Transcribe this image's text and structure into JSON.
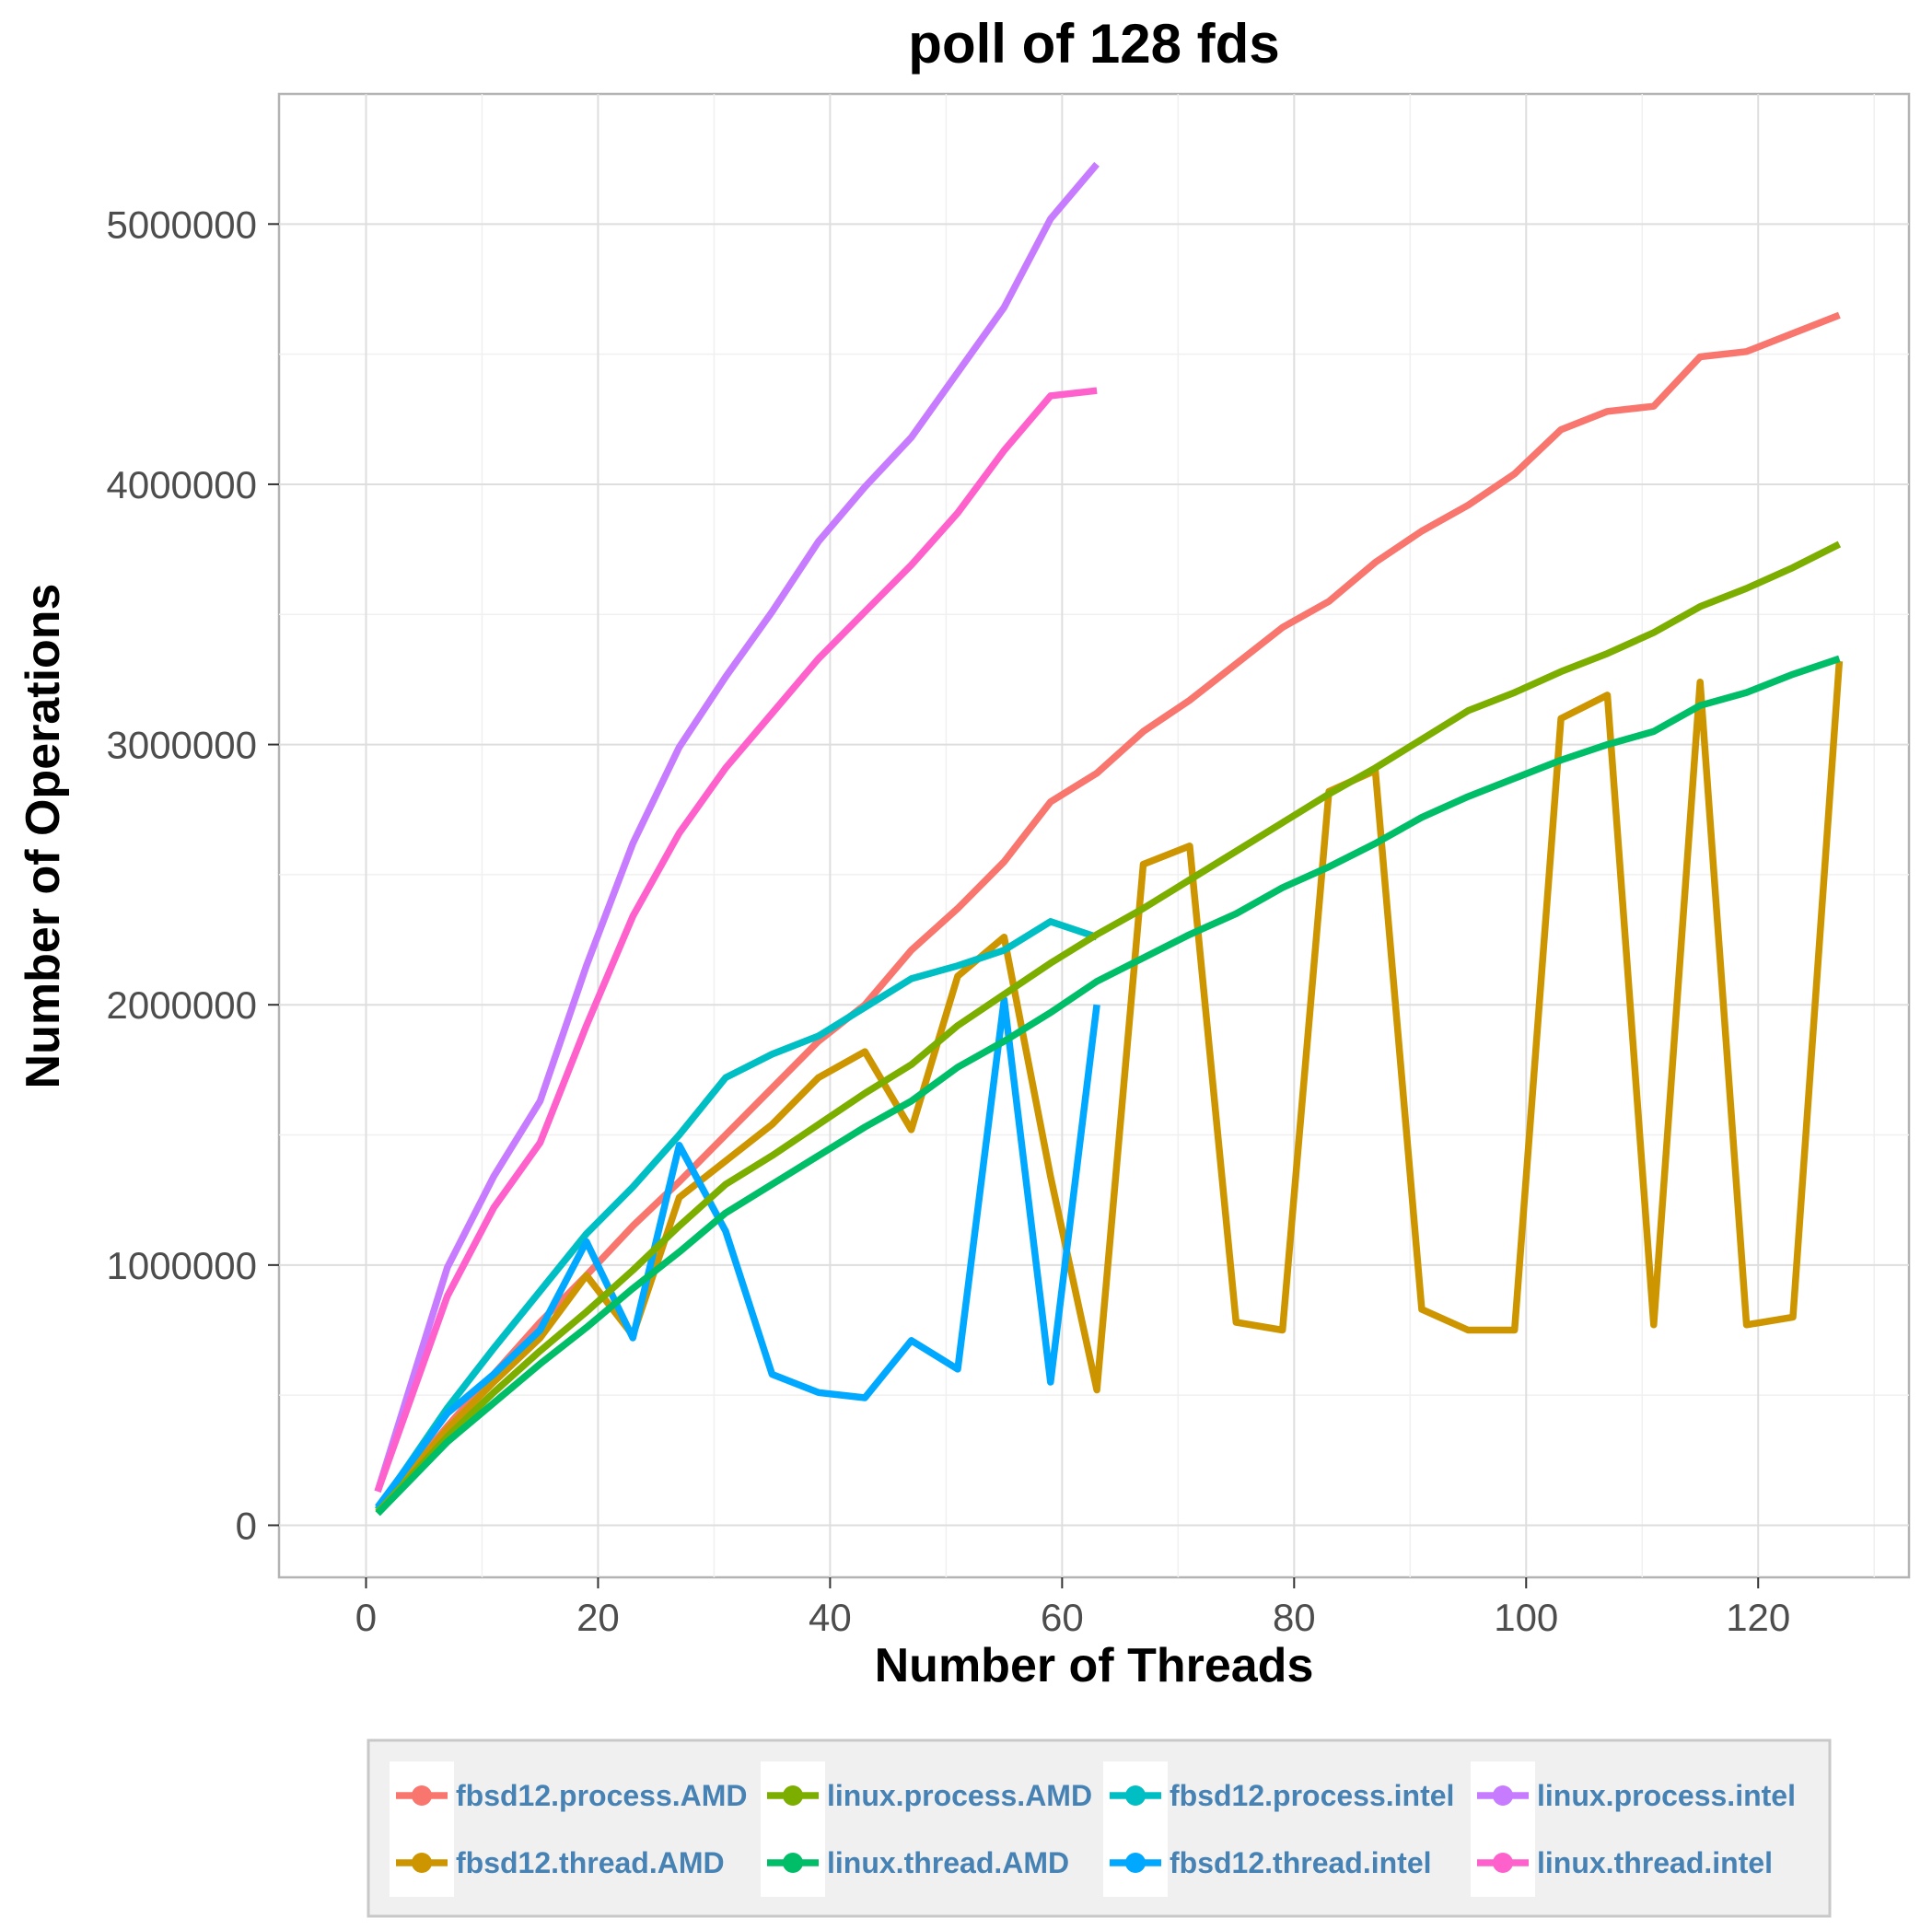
{
  "chart_data": {
    "type": "line",
    "title": "poll of 128 fds",
    "xlabel": "Number of Threads",
    "ylabel": "Number of Operations",
    "xlim": [
      -7.5,
      133
    ],
    "ylim": [
      -200000,
      5500000
    ],
    "x_ticks": [
      0,
      20,
      40,
      60,
      80,
      100,
      120
    ],
    "y_ticks": [
      0,
      1000000,
      2000000,
      3000000,
      4000000,
      5000000
    ],
    "grid": true,
    "legend_position": "bottom",
    "series": [
      {
        "name": "fbsd12.process.AMD",
        "color": "#F8766D",
        "x": [
          1,
          7,
          11,
          15,
          19,
          23,
          27,
          31,
          35,
          39,
          43,
          47,
          51,
          55,
          59,
          63,
          67,
          71,
          75,
          79,
          83,
          87,
          91,
          95,
          99,
          103,
          107,
          111,
          115,
          119,
          123,
          127
        ],
        "y": [
          60000,
          380000,
          580000,
          780000,
          960000,
          1150000,
          1320000,
          1500000,
          1680000,
          1860000,
          2000000,
          2210000,
          2370000,
          2550000,
          2780000,
          2890000,
          3050000,
          3170000,
          3310000,
          3450000,
          3550000,
          3700000,
          3820000,
          3920000,
          4040000,
          4210000,
          4280000,
          4300000,
          4490000,
          4510000,
          4580000,
          4650000
        ]
      },
      {
        "name": "fbsd12.thread.AMD",
        "color": "#CD9600",
        "x": [
          1,
          7,
          11,
          15,
          19,
          23,
          27,
          31,
          35,
          39,
          43,
          47,
          51,
          55,
          59,
          63,
          67,
          71,
          75,
          79,
          83,
          87,
          91,
          95,
          99,
          103,
          107,
          111,
          115,
          119,
          123,
          127
        ],
        "y": [
          60000,
          370000,
          550000,
          720000,
          960000,
          730000,
          1260000,
          1400000,
          1540000,
          1720000,
          1820000,
          1520000,
          2110000,
          2260000,
          1340000,
          520000,
          2540000,
          2610000,
          780000,
          750000,
          2820000,
          2900000,
          830000,
          750000,
          750000,
          3100000,
          3190000,
          770000,
          3240000,
          770000,
          800000,
          3320000
        ]
      },
      {
        "name": "fbsd12.process.intel",
        "color": "#00BFC4",
        "x": [
          1,
          7,
          11,
          15,
          19,
          23,
          27,
          31,
          35,
          39,
          43,
          47,
          51,
          55,
          59,
          63
        ],
        "y": [
          60000,
          450000,
          680000,
          900000,
          1120000,
          1300000,
          1500000,
          1720000,
          1810000,
          1880000,
          1990000,
          2100000,
          2150000,
          2210000,
          2320000,
          2260000
        ]
      },
      {
        "name": "fbsd12.thread.intel",
        "color": "#00A9FF",
        "x": [
          1,
          7,
          11,
          15,
          19,
          23,
          27,
          31,
          35,
          39,
          43,
          47,
          51,
          55,
          59,
          63
        ],
        "y": [
          70000,
          430000,
          580000,
          750000,
          1090000,
          720000,
          1460000,
          1130000,
          580000,
          510000,
          490000,
          710000,
          600000,
          2020000,
          550000,
          2000000
        ]
      },
      {
        "name": "linux.process.AMD",
        "color": "#7CAE00",
        "x": [
          1,
          7,
          11,
          15,
          19,
          23,
          27,
          31,
          35,
          39,
          43,
          47,
          51,
          55,
          59,
          63,
          67,
          71,
          75,
          79,
          83,
          87,
          91,
          95,
          99,
          103,
          107,
          111,
          115,
          119,
          123,
          127
        ],
        "y": [
          50000,
          340000,
          510000,
          670000,
          820000,
          980000,
          1150000,
          1310000,
          1420000,
          1540000,
          1660000,
          1770000,
          1920000,
          2040000,
          2160000,
          2270000,
          2370000,
          2480000,
          2590000,
          2700000,
          2810000,
          2910000,
          3020000,
          3130000,
          3200000,
          3280000,
          3350000,
          3430000,
          3530000,
          3600000,
          3680000,
          3770000
        ]
      },
      {
        "name": "linux.thread.AMD",
        "color": "#00BE67",
        "x": [
          1,
          7,
          11,
          15,
          19,
          23,
          27,
          31,
          35,
          39,
          43,
          47,
          51,
          55,
          59,
          63,
          67,
          71,
          75,
          79,
          83,
          87,
          91,
          95,
          99,
          103,
          107,
          111,
          115,
          119,
          123,
          127
        ],
        "y": [
          45000,
          320000,
          470000,
          620000,
          760000,
          910000,
          1050000,
          1200000,
          1310000,
          1420000,
          1530000,
          1630000,
          1760000,
          1860000,
          1970000,
          2090000,
          2180000,
          2270000,
          2350000,
          2450000,
          2530000,
          2620000,
          2720000,
          2800000,
          2870000,
          2940000,
          3000000,
          3050000,
          3150000,
          3200000,
          3270000,
          3330000
        ]
      },
      {
        "name": "linux.process.intel",
        "color": "#C77CFF",
        "x": [
          1,
          7,
          11,
          15,
          19,
          23,
          27,
          31,
          35,
          39,
          43,
          47,
          51,
          55,
          59,
          63
        ],
        "y": [
          130000,
          990000,
          1340000,
          1630000,
          2150000,
          2620000,
          2990000,
          3260000,
          3510000,
          3780000,
          3990000,
          4180000,
          4430000,
          4680000,
          5020000,
          5230000
        ]
      },
      {
        "name": "linux.thread.intel",
        "color": "#FF61CC",
        "x": [
          1,
          7,
          11,
          15,
          19,
          23,
          27,
          31,
          35,
          39,
          43,
          47,
          51,
          55,
          59,
          63
        ],
        "y": [
          130000,
          880000,
          1220000,
          1470000,
          1920000,
          2340000,
          2660000,
          2910000,
          3120000,
          3330000,
          3510000,
          3690000,
          3890000,
          4130000,
          4340000,
          4360000
        ]
      }
    ],
    "legend_order": [
      "fbsd12.process.AMD",
      "linux.process.AMD",
      "fbsd12.process.intel",
      "linux.process.intel",
      "fbsd12.thread.AMD",
      "linux.thread.AMD",
      "fbsd12.thread.intel",
      "linux.thread.intel"
    ]
  }
}
